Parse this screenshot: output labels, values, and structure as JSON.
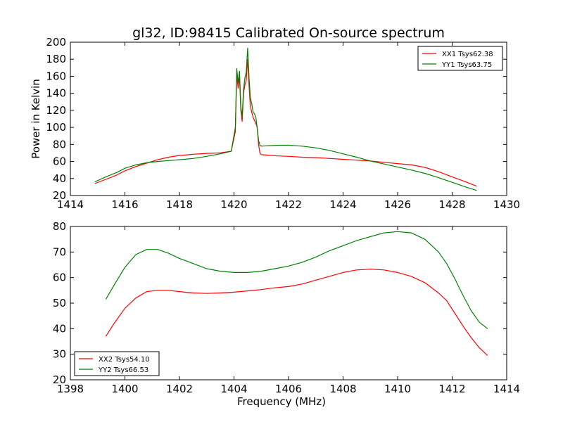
{
  "figure": {
    "title": "gl32, ID:98415 Calibrated On-source spectrum"
  },
  "chart_data": [
    {
      "type": "line",
      "title": "gl32, ID:98415 Calibrated On-source spectrum",
      "xlabel": "",
      "ylabel": "Power in Kelvin",
      "xlim": [
        1414,
        1430
      ],
      "ylim": [
        20,
        200
      ],
      "xticks": [
        1414,
        1416,
        1418,
        1420,
        1422,
        1424,
        1426,
        1428,
        1430
      ],
      "yticks": [
        20,
        40,
        60,
        80,
        100,
        120,
        140,
        160,
        180,
        200
      ],
      "grid": false,
      "legend_position": "top-right",
      "series": [
        {
          "name": "XX1 Tsys62.38",
          "color": "#ff0000",
          "x": [
            1414.9,
            1415.3,
            1415.7,
            1416.0,
            1416.4,
            1416.8,
            1417.2,
            1417.6,
            1418.0,
            1418.5,
            1419.0,
            1419.5,
            1419.9,
            1420.05,
            1420.1,
            1420.15,
            1420.2,
            1420.25,
            1420.3,
            1420.35,
            1420.4,
            1420.45,
            1420.5,
            1420.55,
            1420.6,
            1420.65,
            1420.7,
            1420.75,
            1420.8,
            1420.85,
            1420.9,
            1420.95,
            1421.0,
            1421.2,
            1421.6,
            1422.0,
            1422.5,
            1423.0,
            1423.5,
            1424.0,
            1424.5,
            1425.0,
            1425.5,
            1426.0,
            1426.5,
            1427.0,
            1427.5,
            1428.0,
            1428.5,
            1428.9
          ],
          "y": [
            34,
            39,
            44,
            49,
            54,
            58,
            62,
            65,
            67,
            68.5,
            69.5,
            70,
            72,
            95,
            163,
            146,
            160,
            120,
            107,
            140,
            150,
            155,
            180,
            150,
            125,
            118,
            112,
            108,
            105,
            100,
            80,
            70,
            68,
            67.5,
            66.5,
            66,
            65,
            64.5,
            63.5,
            62.5,
            61.5,
            60.5,
            59,
            57.5,
            56,
            53,
            48,
            42,
            36,
            31
          ]
        },
        {
          "name": "YY1 Tsys63.75",
          "color": "#008000",
          "x": [
            1414.9,
            1415.3,
            1415.7,
            1416.0,
            1416.4,
            1416.8,
            1417.2,
            1417.6,
            1418.0,
            1418.5,
            1419.0,
            1419.5,
            1419.9,
            1420.05,
            1420.1,
            1420.15,
            1420.2,
            1420.25,
            1420.3,
            1420.35,
            1420.4,
            1420.45,
            1420.5,
            1420.55,
            1420.6,
            1420.65,
            1420.7,
            1420.75,
            1420.8,
            1420.85,
            1420.9,
            1420.95,
            1421.0,
            1421.3,
            1421.7,
            1422.0,
            1422.5,
            1423.0,
            1423.5,
            1424.0,
            1424.5,
            1425.0,
            1425.5,
            1426.0,
            1426.5,
            1427.0,
            1427.5,
            1428.0,
            1428.5,
            1428.9
          ],
          "y": [
            36,
            42,
            47,
            52,
            56,
            58.5,
            60,
            61,
            62,
            63.5,
            66,
            69,
            72,
            100,
            169,
            152,
            166,
            125,
            112,
            145,
            158,
            165,
            193,
            160,
            135,
            128,
            118,
            116,
            112,
            100,
            85,
            79,
            78,
            78.5,
            79,
            79,
            78,
            76,
            73,
            69,
            65,
            60.5,
            57,
            53.5,
            50,
            46,
            41,
            35.5,
            30,
            26
          ]
        }
      ]
    },
    {
      "type": "line",
      "title": "",
      "xlabel": "Frequency (MHz)",
      "ylabel": "",
      "xlim": [
        1398,
        1414
      ],
      "ylim": [
        20,
        80
      ],
      "xticks": [
        1398,
        1400,
        1402,
        1404,
        1406,
        1408,
        1410,
        1412,
        1414
      ],
      "yticks": [
        20,
        30,
        40,
        50,
        60,
        70,
        80
      ],
      "grid": false,
      "legend_position": "bottom-left",
      "series": [
        {
          "name": "XX2 Tsys54.10",
          "color": "#ff0000",
          "x": [
            1399.3,
            1399.6,
            1400.0,
            1400.4,
            1400.8,
            1401.2,
            1401.6,
            1402.0,
            1402.5,
            1403.0,
            1403.5,
            1404.0,
            1404.5,
            1405.0,
            1405.5,
            1406.0,
            1406.5,
            1407.0,
            1407.5,
            1408.0,
            1408.5,
            1409.0,
            1409.5,
            1410.0,
            1410.5,
            1411.0,
            1411.5,
            1411.8,
            1412.1,
            1412.4,
            1412.7,
            1413.0,
            1413.3
          ],
          "y": [
            37,
            42,
            48,
            52,
            54.5,
            55,
            55,
            54.5,
            54,
            53.8,
            54,
            54.3,
            54.8,
            55.3,
            56,
            56.5,
            57.5,
            59,
            60.5,
            62,
            63,
            63.3,
            63,
            62,
            60.5,
            58,
            54,
            51,
            46,
            41,
            36.5,
            32.5,
            29.5
          ]
        },
        {
          "name": "YY2 Tsys66.53",
          "color": "#008000",
          "x": [
            1399.3,
            1399.6,
            1400.0,
            1400.4,
            1400.8,
            1401.2,
            1401.6,
            1402.0,
            1402.5,
            1403.0,
            1403.5,
            1404.0,
            1404.5,
            1405.0,
            1405.5,
            1406.0,
            1406.5,
            1407.0,
            1407.5,
            1408.0,
            1408.5,
            1409.0,
            1409.5,
            1410.0,
            1410.5,
            1411.0,
            1411.5,
            1411.8,
            1412.1,
            1412.4,
            1412.7,
            1413.0,
            1413.3
          ],
          "y": [
            51.5,
            57,
            64,
            69,
            71,
            71,
            69.5,
            67.5,
            65.5,
            63.5,
            62.5,
            62,
            62,
            62.5,
            63.5,
            64.5,
            66,
            68,
            70.5,
            72.5,
            74.5,
            76,
            77.5,
            78,
            77.5,
            75,
            70,
            65.5,
            59.5,
            53,
            47,
            42.5,
            40
          ]
        }
      ]
    }
  ]
}
